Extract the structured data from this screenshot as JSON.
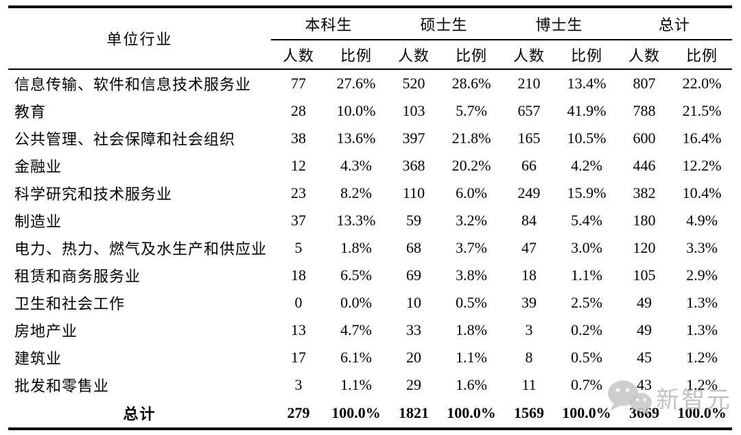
{
  "chart_data": {
    "type": "table",
    "header": {
      "row_dimension": "单位行业",
      "groups": [
        {
          "label": "本科生",
          "subcolumns": [
            "人数",
            "比例"
          ]
        },
        {
          "label": "硕士生",
          "subcolumns": [
            "人数",
            "比例"
          ]
        },
        {
          "label": "博士生",
          "subcolumns": [
            "人数",
            "比例"
          ]
        },
        {
          "label": "总计",
          "subcolumns": [
            "人数",
            "比例"
          ]
        }
      ]
    },
    "rows": [
      {
        "industry": "信息传输、软件和信息技术服务业",
        "values": [
          "77",
          "27.6%",
          "520",
          "28.6%",
          "210",
          "13.4%",
          "807",
          "22.0%"
        ]
      },
      {
        "industry": "教育",
        "values": [
          "28",
          "10.0%",
          "103",
          "5.7%",
          "657",
          "41.9%",
          "788",
          "21.5%"
        ]
      },
      {
        "industry": "公共管理、社会保障和社会组织",
        "values": [
          "38",
          "13.6%",
          "397",
          "21.8%",
          "165",
          "10.5%",
          "600",
          "16.4%"
        ]
      },
      {
        "industry": "金融业",
        "values": [
          "12",
          "4.3%",
          "368",
          "20.2%",
          "66",
          "4.2%",
          "446",
          "12.2%"
        ]
      },
      {
        "industry": "科学研究和技术服务业",
        "values": [
          "23",
          "8.2%",
          "110",
          "6.0%",
          "249",
          "15.9%",
          "382",
          "10.4%"
        ]
      },
      {
        "industry": "制造业",
        "values": [
          "37",
          "13.3%",
          "59",
          "3.2%",
          "84",
          "5.4%",
          "180",
          "4.9%"
        ]
      },
      {
        "industry": "电力、热力、燃气及水生产和供应业",
        "values": [
          "5",
          "1.8%",
          "68",
          "3.7%",
          "47",
          "3.0%",
          "120",
          "3.3%"
        ]
      },
      {
        "industry": "租赁和商务服务业",
        "values": [
          "18",
          "6.5%",
          "69",
          "3.8%",
          "18",
          "1.1%",
          "105",
          "2.9%"
        ]
      },
      {
        "industry": "卫生和社会工作",
        "values": [
          "0",
          "0.0%",
          "10",
          "0.5%",
          "39",
          "2.5%",
          "49",
          "1.3%"
        ]
      },
      {
        "industry": "房地产业",
        "values": [
          "13",
          "4.7%",
          "33",
          "1.8%",
          "3",
          "0.2%",
          "49",
          "1.3%"
        ]
      },
      {
        "industry": "建筑业",
        "values": [
          "17",
          "6.1%",
          "20",
          "1.1%",
          "8",
          "0.5%",
          "45",
          "1.2%"
        ]
      },
      {
        "industry": "批发和零售业",
        "values": [
          "3",
          "1.1%",
          "29",
          "1.6%",
          "11",
          "0.7%",
          "43",
          "1.2%"
        ]
      }
    ],
    "total_row": {
      "label": "总计",
      "values": [
        "279",
        "100.0%",
        "1821",
        "100.0%",
        "1569",
        "100.0%",
        "3669",
        "100.0%"
      ]
    }
  },
  "watermark": {
    "brand": "新智元",
    "icon": "wechat-icon"
  },
  "colors": {
    "text": "#000000",
    "rule": "#000000",
    "watermark": "#b2b2b2",
    "background": "#ffffff"
  }
}
